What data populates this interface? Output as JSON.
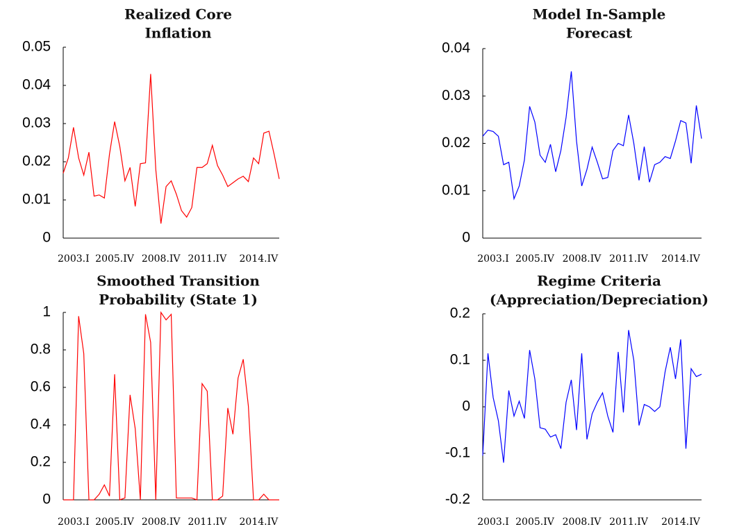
{
  "chart_data": [
    {
      "type": "line",
      "title": [
        "Realized Core",
        "Inflation"
      ],
      "categories": [
        null,
        null,
        "2003.I",
        null,
        null,
        null,
        null,
        null,
        null,
        null,
        "2005.IV",
        null,
        null,
        null,
        null,
        null,
        null,
        null,
        null,
        "2008.IV",
        null,
        null,
        null,
        null,
        null,
        null,
        null,
        null,
        "2011.IV",
        null,
        null,
        null,
        null,
        null,
        null,
        null,
        null,
        null,
        "2014.IV",
        null,
        null,
        null,
        null
      ],
      "series": [
        {
          "color": "#ff0000",
          "values": [
            0.017,
            0.021,
            0.029,
            0.021,
            0.0165,
            0.0225,
            0.011,
            0.0113,
            0.0105,
            0.022,
            0.0305,
            0.024,
            0.015,
            0.0185,
            0.0083,
            0.0195,
            0.0197,
            0.043,
            0.018,
            0.0038,
            0.0135,
            0.015,
            0.0115,
            0.0072,
            0.0055,
            0.008,
            0.0185,
            0.0185,
            0.0195,
            0.0243,
            0.019,
            0.0165,
            0.0135,
            0.0145,
            0.0155,
            0.0162,
            0.0148,
            0.021,
            0.0195,
            0.0275,
            0.028,
            0.022,
            0.0155
          ]
        }
      ],
      "ylim": [
        0,
        0.05
      ],
      "yticks": [
        0,
        0.01,
        0.02,
        0.03,
        0.04,
        0.05
      ]
    },
    {
      "type": "line",
      "title": [
        "Model In-Sample",
        "Forecast"
      ],
      "categories": [
        null,
        null,
        "2003.I",
        null,
        null,
        null,
        null,
        null,
        null,
        null,
        "2005.IV",
        null,
        null,
        null,
        null,
        null,
        null,
        null,
        null,
        "2008.IV",
        null,
        null,
        null,
        null,
        null,
        null,
        null,
        null,
        "2011.IV",
        null,
        null,
        null,
        null,
        null,
        null,
        null,
        null,
        null,
        "2014.IV",
        null,
        null,
        null,
        null
      ],
      "series": [
        {
          "color": "#0000ff",
          "values": [
            0.0215,
            0.0228,
            0.0225,
            0.0215,
            0.0155,
            0.016,
            0.0083,
            0.011,
            0.0165,
            0.0278,
            0.0245,
            0.0175,
            0.016,
            0.0198,
            0.014,
            0.0185,
            0.0255,
            0.0352,
            0.0205,
            0.011,
            0.0145,
            0.0192,
            0.016,
            0.0125,
            0.0128,
            0.0185,
            0.02,
            0.0195,
            0.026,
            0.02,
            0.0122,
            0.0193,
            0.0118,
            0.0155,
            0.016,
            0.0172,
            0.0168,
            0.0205,
            0.0248,
            0.0243,
            0.0158,
            0.028,
            0.021
          ]
        }
      ],
      "ylim": [
        0,
        0.04
      ],
      "yticks": [
        0,
        0.01,
        0.02,
        0.03,
        0.04
      ]
    },
    {
      "type": "line",
      "title": [
        "Smoothed Transition",
        "Probability (State 1)"
      ],
      "categories": [
        null,
        null,
        "2003.I",
        null,
        null,
        null,
        null,
        null,
        null,
        null,
        "2005.IV",
        null,
        null,
        null,
        null,
        null,
        null,
        null,
        null,
        "2008.IV",
        null,
        null,
        null,
        null,
        null,
        null,
        null,
        null,
        "2011.IV",
        null,
        null,
        null,
        null,
        null,
        null,
        null,
        null,
        null,
        "2014.IV",
        null,
        null,
        null,
        null
      ],
      "series": [
        {
          "color": "#ff0000",
          "values": [
            0,
            0,
            0,
            0.98,
            0.78,
            0,
            0,
            0.03,
            0.08,
            0.02,
            0.67,
            0,
            0.01,
            0.56,
            0.38,
            0,
            0.99,
            0.84,
            0,
            1,
            0.96,
            0.99,
            0.01,
            0.01,
            0.01,
            0.01,
            0,
            0.62,
            0.58,
            0,
            0,
            0.02,
            0.49,
            0.35,
            0.65,
            0.75,
            0.5,
            0,
            0,
            0.03,
            0,
            0,
            0
          ]
        }
      ],
      "ylim": [
        0,
        1
      ],
      "yticks": [
        0,
        0.2,
        0.4,
        0.6,
        0.8,
        1
      ]
    },
    {
      "type": "line",
      "title": [
        "Regime Criteria",
        "(Appreciation/Depreciation)"
      ],
      "categories": [
        null,
        null,
        "2003.I",
        null,
        null,
        null,
        null,
        null,
        null,
        null,
        "2005.IV",
        null,
        null,
        null,
        null,
        null,
        null,
        null,
        null,
        "2008.IV",
        null,
        null,
        null,
        null,
        null,
        null,
        null,
        null,
        "2011.IV",
        null,
        null,
        null,
        null,
        null,
        null,
        null,
        null,
        null,
        "2014.IV",
        null,
        null,
        null,
        null
      ],
      "series": [
        {
          "color": "#0000ff",
          "values": [
            -0.105,
            0.115,
            0.02,
            -0.03,
            -0.12,
            0.035,
            -0.02,
            0.012,
            -0.025,
            0.122,
            0.06,
            -0.045,
            -0.048,
            -0.065,
            -0.06,
            -0.09,
            0.01,
            0.058,
            -0.05,
            0.115,
            -0.07,
            -0.015,
            0.01,
            0.03,
            -0.02,
            -0.055,
            0.118,
            -0.012,
            0.165,
            0.1,
            -0.04,
            0.005,
            0,
            -0.01,
            0,
            0.075,
            0.128,
            0.06,
            0.145,
            -0.09,
            0.082,
            0.065,
            0.07
          ]
        }
      ],
      "ylim": [
        -0.2,
        0.2
      ],
      "yticks": [
        -0.2,
        -0.1,
        0,
        0.1,
        0.2
      ]
    }
  ]
}
